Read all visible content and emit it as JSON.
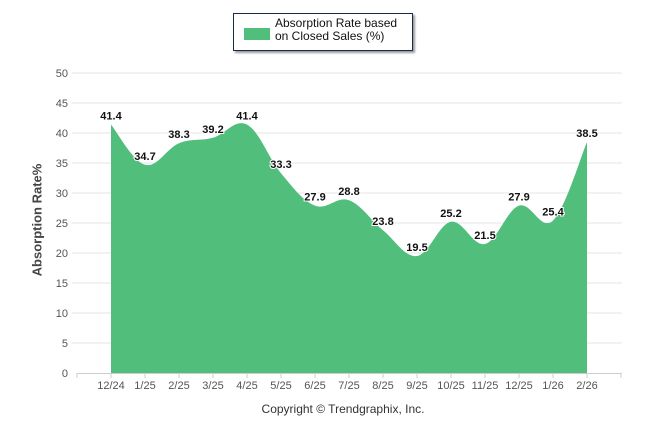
{
  "chart_data": {
    "type": "area",
    "title": "",
    "legend": {
      "position": "top-center",
      "entries": [
        "Absorption Rate based on Closed Sales (%)"
      ]
    },
    "xlabel": "",
    "ylabel": "Absorption Rate%",
    "ylim": [
      0,
      50
    ],
    "yticks": [
      0,
      5,
      10,
      15,
      20,
      25,
      30,
      35,
      40,
      45,
      50
    ],
    "grid": true,
    "categories": [
      "12/24",
      "1/25",
      "2/25",
      "3/25",
      "4/25",
      "5/25",
      "6/25",
      "7/25",
      "8/25",
      "9/25",
      "10/25",
      "11/25",
      "12/25",
      "1/26",
      "2/26"
    ],
    "series": [
      {
        "name": "Absorption Rate based on Closed Sales (%)",
        "color": "#52be7c",
        "values": [
          41.4,
          34.7,
          38.3,
          39.2,
          41.4,
          33.3,
          27.9,
          28.8,
          23.8,
          19.5,
          25.2,
          21.5,
          27.9,
          25.4,
          38.5
        ]
      }
    ],
    "annotations": [
      "Copyright © Trendgraphix, Inc."
    ]
  },
  "legend_label": "Absorption Rate based on Closed Sales (%)",
  "y_axis_title": "Absorption Rate%",
  "copyright": "Copyright © Trendgraphix, Inc."
}
